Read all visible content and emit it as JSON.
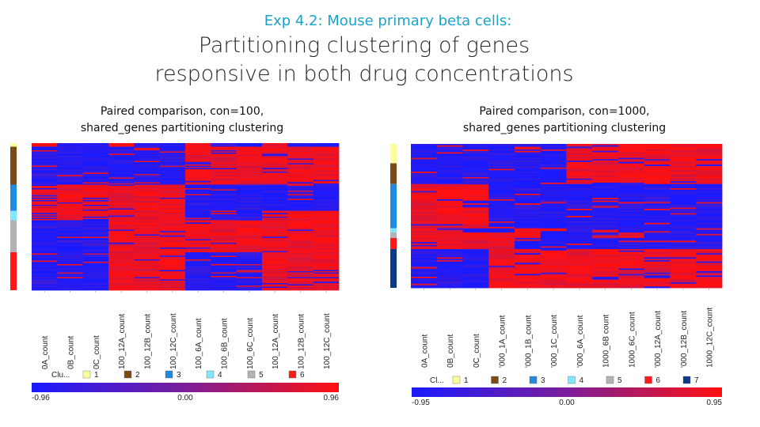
{
  "slide": {
    "supertitle": "Exp 4.2: Mouse primary beta cells:",
    "title_line1": "Partitioning clustering of genes",
    "title_line2": "responsive in both drug concentrations"
  },
  "colors": {
    "low": "#1a1aff",
    "mid": "#7a1e9a",
    "high": "#ff1010",
    "cluster_colors": [
      "#ffff99",
      "#7a4a17",
      "#1f8ae0",
      "#7fe8ff",
      "#b3b3b3",
      "#ff1a1a",
      "#0b3a8a"
    ]
  },
  "chart_data": [
    {
      "type": "heatmap",
      "subtitle_line1": "Paired comparison, con=100,",
      "subtitle_line2": "shared_genes partitioning clustering",
      "columns": [
        "0A_count",
        "0B_count",
        "0C_count",
        "100_12A_count",
        "100_12B_count",
        "100_12C_count",
        "100_6A_count",
        "100_6B_count",
        "100_6C_count",
        "100_12A_count",
        "100_12B_count",
        "100_12C_count"
      ],
      "column_tick_labels": [
        "0A_count",
        "0B_count",
        "0C_count",
        "100_12A_count",
        "100_12B_count",
        "100_12C_count",
        "100_6A_count",
        "100_6B_count",
        "100_6C_count",
        "100_12A_count",
        "100_12B_count",
        "100_12C_count"
      ],
      "cluster_sizes": [
        3,
        32,
        22,
        8,
        27,
        32
      ],
      "cluster_patterns": [
        [
          1,
          -1,
          -1,
          1,
          -1,
          -1,
          1,
          -1,
          -1,
          1,
          -1,
          -1
        ],
        [
          -1,
          -1,
          -1,
          -1,
          -1,
          -1,
          1,
          1,
          1,
          1,
          1,
          1
        ],
        [
          1,
          1,
          1,
          1,
          1,
          1,
          -1,
          -1,
          -1,
          -1,
          -1,
          -1
        ],
        [
          1,
          1,
          1,
          1,
          1,
          1,
          -1,
          -1,
          -1,
          1,
          1,
          1
        ],
        [
          -1,
          -1,
          -1,
          1,
          1,
          1,
          1,
          1,
          1,
          1,
          1,
          1
        ],
        [
          -1,
          -1,
          -1,
          1,
          1,
          1,
          -1,
          -1,
          -1,
          1,
          1,
          1
        ]
      ],
      "legend_title": "Clu...",
      "legend_clusters": [
        "1",
        "2",
        "3",
        "4",
        "5",
        "6"
      ],
      "colorbar_min": "-0.96",
      "colorbar_mid": "0.00",
      "colorbar_max": "0.96",
      "value_range": [
        -0.96,
        0.96
      ]
    },
    {
      "type": "heatmap",
      "subtitle_line1": "Paired comparison, con=1000,",
      "subtitle_line2": "shared_genes partitioning clustering",
      "columns": [
        "0A_count",
        "0B_count",
        "0C_count",
        "1000_1A_count",
        "1000_1B_count",
        "1000_1C_count",
        "1000_6A_count",
        "1000_6B_count",
        "1000_6C_count",
        "1000_12A_count",
        "1000_12B_count",
        "1000_12C_count"
      ],
      "column_tick_labels": [
        "0A_count",
        "0B_count",
        "0C_count",
        "'000_1A_count",
        "'000_1B_count",
        "'000_1C_count",
        "'000_6A_count",
        "1000_6B count",
        "1000_6C_count",
        "'000_12A_count",
        "'000_12B_count",
        "1000_12C_count"
      ],
      "cluster_sizes": [
        14,
        15,
        32,
        3,
        4,
        8,
        28
      ],
      "cluster_patterns": [
        [
          -1,
          -1,
          -1,
          -1,
          -1,
          -1,
          1,
          1,
          1,
          1,
          1,
          1
        ],
        [
          -1,
          -1,
          -1,
          -1,
          -1,
          -1,
          1,
          1,
          1,
          1,
          1,
          1
        ],
        [
          1,
          1,
          1,
          -1,
          -1,
          -1,
          -1,
          -1,
          -1,
          -1,
          -1,
          -1
        ],
        [
          1,
          1,
          -1,
          -1,
          1,
          1,
          -1,
          -1,
          -1,
          -1,
          -1,
          -1
        ],
        [
          1,
          1,
          1,
          1,
          1,
          -1,
          -1,
          -1,
          1,
          -1,
          -1,
          -1
        ],
        [
          1,
          1,
          1,
          1,
          -1,
          -1,
          -1,
          -1,
          -1,
          -1,
          -1,
          -1
        ],
        [
          -1,
          -1,
          -1,
          1,
          1,
          1,
          1,
          1,
          1,
          1,
          1,
          1
        ]
      ],
      "legend_title": "Cl...",
      "legend_clusters": [
        "1",
        "2",
        "3",
        "4",
        "5",
        "6",
        "7"
      ],
      "colorbar_min": "-0.95",
      "colorbar_mid": "0.00",
      "colorbar_max": "0.95",
      "value_range": [
        -0.95,
        0.95
      ]
    }
  ]
}
